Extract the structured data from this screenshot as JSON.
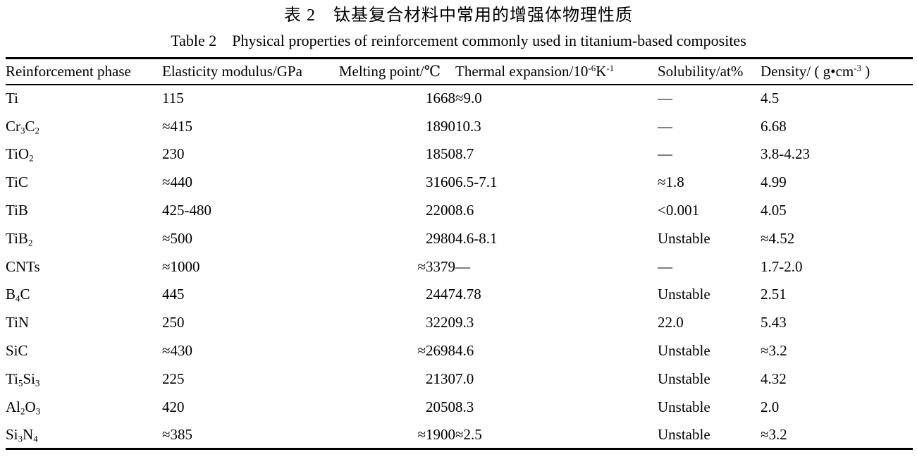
{
  "caption": {
    "zh": "表 2　钛基复合材料中常用的增强体物理性质",
    "en": "Table 2　Physical properties of reinforcement commonly used in titanium-based composites"
  },
  "table": {
    "columns": [
      {
        "label": "Reinforcement phase"
      },
      {
        "label": "Elasticity modulus/GPa"
      },
      {
        "label": "Melting point/℃"
      },
      {
        "label": "Thermal expansion/10^{-6}K^{-1}"
      },
      {
        "label": "Solubility/at%"
      },
      {
        "label": "Density/ ( g•cm^{-3} )"
      }
    ],
    "rows": [
      [
        "Ti",
        "115",
        "1668",
        "≈9.0",
        "—",
        "4.5"
      ],
      [
        "Cr_{3}C_{2}",
        "≈415",
        "1890",
        "10.3",
        "—",
        "6.68"
      ],
      [
        "TiO_{2}",
        "230",
        "1850",
        "8.7",
        "—",
        "3.8-4.23"
      ],
      [
        "TiC",
        "≈440",
        "3160",
        "6.5-7.1",
        "≈1.8",
        "4.99"
      ],
      [
        "TiB",
        "425-480",
        "2200",
        "8.6",
        "<0.001",
        "4.05"
      ],
      [
        "TiB_{2}",
        "≈500",
        "2980",
        "4.6-8.1",
        "Unstable",
        "≈4.52"
      ],
      [
        "CNTs",
        "≈1000",
        "≈3379",
        "—",
        "—",
        "1.7-2.0"
      ],
      [
        "B_{4}C",
        "445",
        "2447",
        "4.78",
        "Unstable",
        "2.51"
      ],
      [
        "TiN",
        "250",
        "3220",
        "9.3",
        "22.0",
        "5.43"
      ],
      [
        "SiC",
        "≈430",
        "≈2698",
        "4.6",
        "Unstable",
        "≈3.2"
      ],
      [
        "Ti_{5}Si_{3}",
        "225",
        "2130",
        "7.0",
        "Unstable",
        "4.32"
      ],
      [
        "Al_{2}O_{3}",
        "420",
        "2050",
        "8.3",
        "Unstable",
        "2.0"
      ],
      [
        "Si_{3}N_{4}",
        "≈385",
        "≈1900",
        "≈2.5",
        "Unstable",
        "≈3.2"
      ]
    ]
  }
}
